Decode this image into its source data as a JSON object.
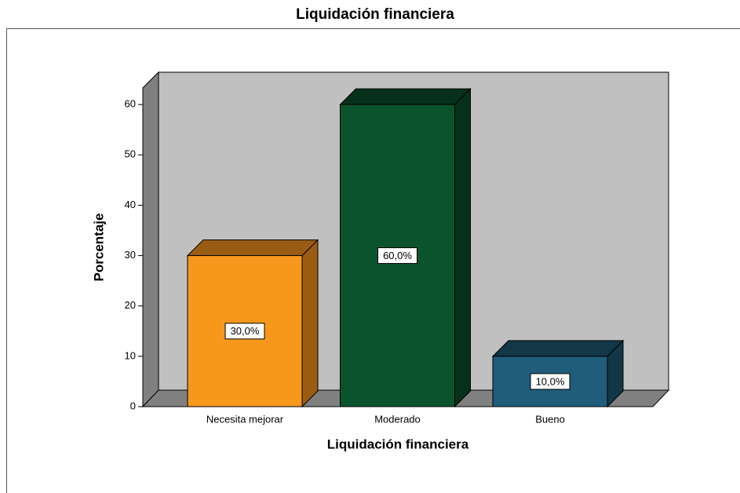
{
  "chart_data": {
    "type": "bar3d",
    "title": "Liquidación financiera",
    "x_label": "Liquidación financiera",
    "y_label": "Porcentaje",
    "categories": [
      "Necesita mejorar",
      "Moderado",
      "Bueno"
    ],
    "values": [
      30,
      60,
      10
    ],
    "value_labels": [
      "30,0%",
      "60,0%",
      "10,0%"
    ],
    "colors": [
      "#f7981d",
      "#0b532d",
      "#1f5d7b"
    ],
    "side_colors": [
      "#9a5c12",
      "#06301a",
      "#123747"
    ],
    "ylim": [
      0,
      63.3
    ],
    "yticks": [
      0,
      10,
      20,
      30,
      40,
      50,
      60
    ]
  }
}
